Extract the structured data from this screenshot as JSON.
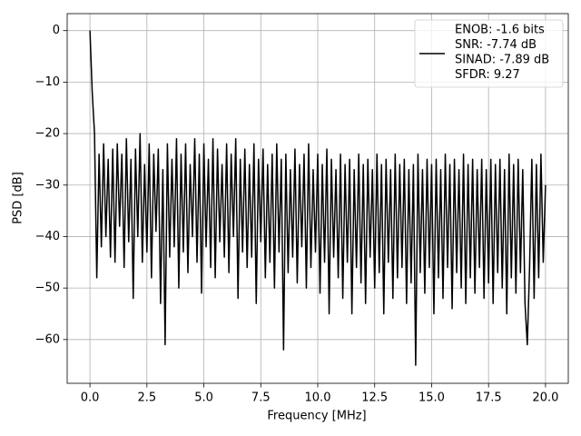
{
  "chart_data": {
    "type": "line",
    "xlabel": "Frequency [MHz]",
    "ylabel": "PSD [dB]",
    "legend_text": [
      "ENOB: -1.6 bits",
      "SNR: -7.74 dB",
      "SINAD: -7.89 dB",
      "SFDR: 9.27"
    ],
    "legend_position": "upper right",
    "grid": true,
    "xlim": [
      -1.0,
      21.0
    ],
    "ylim": [
      -68.5,
      3.3
    ],
    "xticks": [
      {
        "value": 0,
        "label": "0.0"
      },
      {
        "value": 2.5,
        "label": "2.5"
      },
      {
        "value": 5,
        "label": "5.0"
      },
      {
        "value": 7.5,
        "label": "7.5"
      },
      {
        "value": 10,
        "label": "10.0"
      },
      {
        "value": 12.5,
        "label": "12.5"
      },
      {
        "value": 15,
        "label": "15.0"
      },
      {
        "value": 17.5,
        "label": "17.5"
      },
      {
        "value": 20,
        "label": "20.0"
      }
    ],
    "yticks": [
      {
        "value": -60,
        "label": "−60"
      },
      {
        "value": -50,
        "label": "−50"
      },
      {
        "value": -40,
        "label": "−40"
      },
      {
        "value": -30,
        "label": "−30"
      },
      {
        "value": -20,
        "label": "−20"
      },
      {
        "value": -10,
        "label": "−10"
      },
      0
    ],
    "x": [
      0,
      0.1,
      0.2,
      0.3,
      0.4,
      0.5,
      0.6,
      0.7,
      0.8,
      0.9,
      1,
      1.1,
      1.2,
      1.3,
      1.4,
      1.5,
      1.6,
      1.7,
      1.8,
      1.9,
      2,
      2.1,
      2.2,
      2.3,
      2.4,
      2.5,
      2.6,
      2.7,
      2.8,
      2.9,
      3,
      3.1,
      3.2,
      3.3,
      3.4,
      3.5,
      3.6,
      3.7,
      3.8,
      3.9,
      4,
      4.1,
      4.2,
      4.3,
      4.4,
      4.5,
      4.6,
      4.7,
      4.8,
      4.9,
      5,
      5.1,
      5.2,
      5.3,
      5.4,
      5.5,
      5.6,
      5.7,
      5.8,
      5.9,
      6,
      6.1,
      6.2,
      6.3,
      6.4,
      6.5,
      6.6,
      6.7,
      6.8,
      6.9,
      7,
      7.1,
      7.2,
      7.3,
      7.4,
      7.5,
      7.6,
      7.7,
      7.8,
      7.9,
      8,
      8.1,
      8.2,
      8.3,
      8.4,
      8.5,
      8.6,
      8.7,
      8.8,
      8.9,
      9,
      9.1,
      9.2,
      9.3,
      9.4,
      9.5,
      9.6,
      9.7,
      9.8,
      9.9,
      10,
      10.1,
      10.2,
      10.3,
      10.4,
      10.5,
      10.6,
      10.7,
      10.8,
      10.9,
      11,
      11.1,
      11.2,
      11.3,
      11.4,
      11.5,
      11.6,
      11.7,
      11.8,
      11.9,
      12,
      12.1,
      12.2,
      12.3,
      12.4,
      12.5,
      12.6,
      12.7,
      12.8,
      12.9,
      13,
      13.1,
      13.2,
      13.3,
      13.4,
      13.5,
      13.6,
      13.7,
      13.8,
      13.9,
      14,
      14.1,
      14.2,
      14.3,
      14.4,
      14.5,
      14.6,
      14.7,
      14.8,
      14.9,
      15,
      15.1,
      15.2,
      15.3,
      15.4,
      15.5,
      15.6,
      15.7,
      15.8,
      15.9,
      16,
      16.1,
      16.2,
      16.3,
      16.4,
      16.5,
      16.6,
      16.7,
      16.8,
      16.9,
      17,
      17.1,
      17.2,
      17.3,
      17.4,
      17.5,
      17.6,
      17.7,
      17.8,
      17.9,
      18,
      18.1,
      18.2,
      18.3,
      18.4,
      18.5,
      18.6,
      18.7,
      18.8,
      18.9,
      19,
      19.1,
      19.2,
      19.3,
      19.4,
      19.5,
      19.6,
      19.7,
      19.8,
      19.9,
      20
    ],
    "series": [
      {
        "color": "#000000",
        "values": [
          0,
          -12,
          -20,
          -48,
          -24,
          -42,
          -22,
          -40,
          -25,
          -44,
          -23,
          -45,
          -22,
          -38,
          -24,
          -46,
          -21,
          -41,
          -25,
          -52,
          -23,
          -40,
          -20,
          -45,
          -26,
          -43,
          -22,
          -48,
          -24,
          -39,
          -23,
          -53,
          -27,
          -61,
          -22,
          -44,
          -25,
          -42,
          -21,
          -50,
          -24,
          -43,
          -22,
          -47,
          -26,
          -40,
          -21,
          -45,
          -24,
          -51,
          -22,
          -42,
          -25,
          -46,
          -21,
          -48,
          -23,
          -41,
          -26,
          -44,
          -22,
          -47,
          -24,
          -40,
          -21,
          -52,
          -25,
          -43,
          -23,
          -46,
          -26,
          -44,
          -22,
          -53,
          -25,
          -41,
          -23,
          -48,
          -26,
          -45,
          -24,
          -50,
          -22,
          -43,
          -25,
          -62,
          -24,
          -47,
          -27,
          -44,
          -23,
          -49,
          -26,
          -42,
          -24,
          -50,
          -22,
          -46,
          -27,
          -43,
          -24,
          -51,
          -26,
          -45,
          -23,
          -55,
          -25,
          -44,
          -27,
          -48,
          -24,
          -52,
          -26,
          -45,
          -25,
          -55,
          -27,
          -46,
          -24,
          -49,
          -26,
          -53,
          -25,
          -44,
          -27,
          -50,
          -24,
          -47,
          -26,
          -55,
          -25,
          -45,
          -27,
          -52,
          -24,
          -48,
          -26,
          -46,
          -25,
          -53,
          -27,
          -49,
          -26,
          -65,
          -24,
          -47,
          -27,
          -51,
          -25,
          -46,
          -26,
          -55,
          -25,
          -48,
          -27,
          -52,
          -24,
          -46,
          -26,
          -54,
          -25,
          -47,
          -27,
          -50,
          -24,
          -53,
          -26,
          -48,
          -25,
          -51,
          -27,
          -46,
          -25,
          -52,
          -27,
          -49,
          -25,
          -53,
          -26,
          -47,
          -25,
          -50,
          -27,
          -55,
          -24,
          -48,
          -26,
          -51,
          -25,
          -47,
          -27,
          -53,
          -61,
          -46,
          -25,
          -52,
          -26,
          -48,
          -24,
          -45,
          -30
        ]
      }
    ]
  }
}
